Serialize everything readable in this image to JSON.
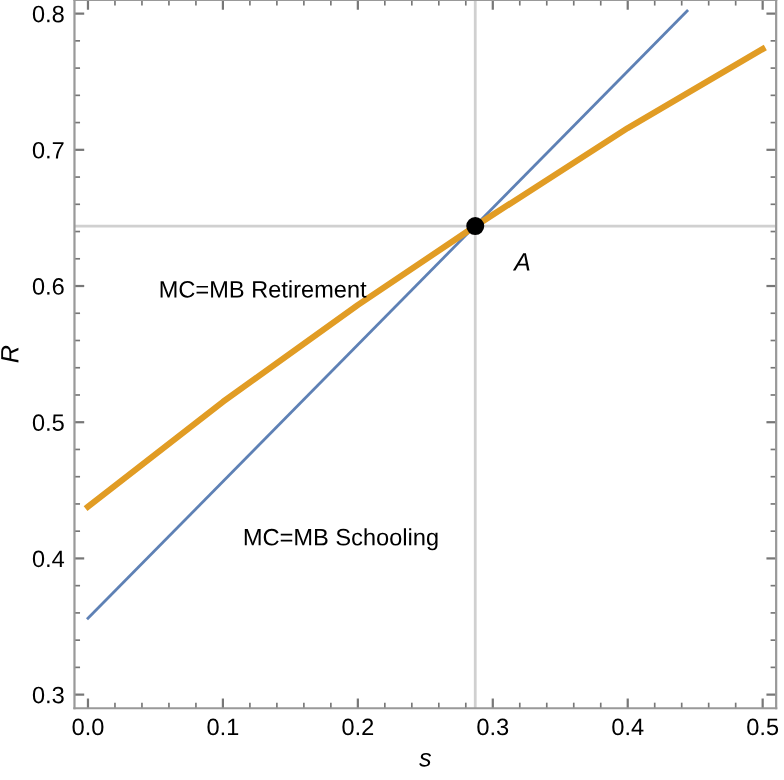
{
  "chart_data": {
    "type": "line",
    "xlabel": "s",
    "ylabel": "R",
    "series": [
      {
        "name": "MC=MB Schooling",
        "color": "#5e81b5",
        "x": [
          0,
          0.444
        ],
        "values": [
          0.356,
          0.802
        ]
      },
      {
        "name": "MC=MB Retirement",
        "color": "#e19c24",
        "x": [
          0,
          0.1,
          0.2,
          0.287,
          0.4,
          0.5
        ],
        "values": [
          0.438,
          0.515,
          0.586,
          0.644,
          0.716,
          0.774
        ]
      },
      {
        "type": "scatter",
        "color": "#000000",
        "x": [
          0.287
        ],
        "values": [
          0.644
        ]
      }
    ],
    "annotations": [
      {
        "text": "A",
        "x": 0.287,
        "y": 0.644
      }
    ],
    "ref_lines": [
      {
        "axis": "x",
        "value": 0.287,
        "color": "#d0d0d0"
      },
      {
        "axis": "y",
        "value": 0.644,
        "color": "#d0d0d0"
      }
    ],
    "xlim": [
      -0.01,
      0.51
    ],
    "ylim": [
      0.29,
      0.81
    ],
    "xticks": [
      {
        "value": 0,
        "label": "0.0"
      },
      0.1,
      0.2,
      0.3,
      0.4,
      0.5
    ],
    "yticks": [
      0.3,
      0.4,
      0.5,
      0.6,
      0.7,
      0.8
    ],
    "grid": false,
    "legend": false
  }
}
